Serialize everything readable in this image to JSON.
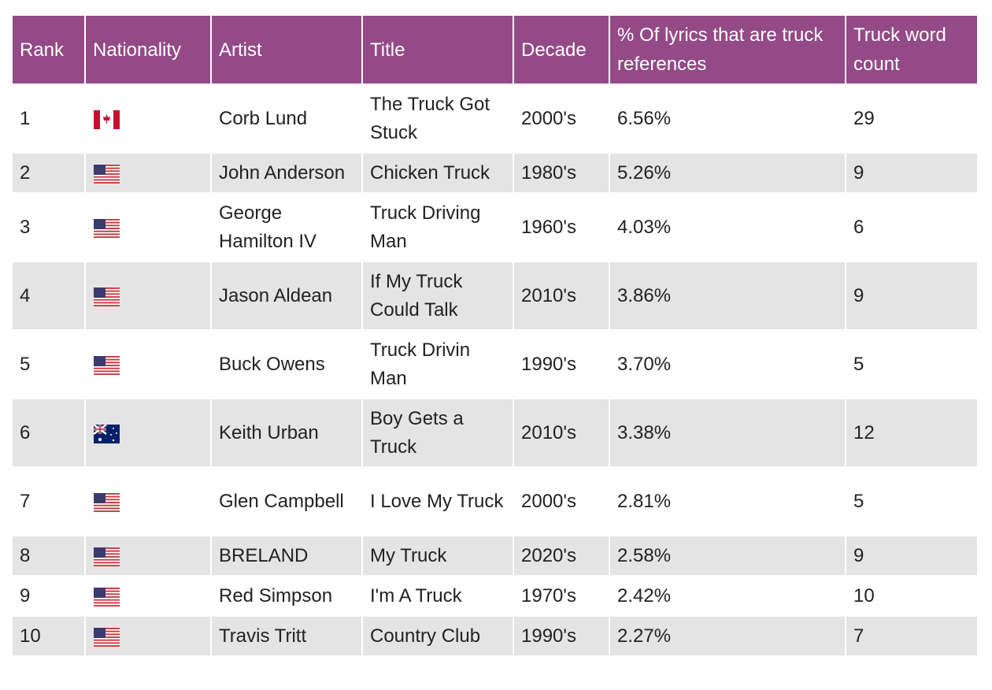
{
  "headers": [
    "Rank",
    "Nationality",
    "Artist",
    "Title",
    "Decade",
    "% Of lyrics that are truck references",
    "Truck word count"
  ],
  "rows": [
    {
      "rank": "1",
      "nationality": "canada-flag-icon",
      "artist": "Corb Lund",
      "title": "The Truck Got Stuck",
      "decade": "2000's",
      "pct": "6.56%",
      "count": "29"
    },
    {
      "rank": "2",
      "nationality": "usa-flag-icon",
      "artist": "John Anderson",
      "title": "Chicken Truck",
      "decade": "1980's",
      "pct": "5.26%",
      "count": "9"
    },
    {
      "rank": "3",
      "nationality": "usa-flag-icon",
      "artist": "George Hamilton IV",
      "title": "Truck Driving Man",
      "decade": "1960's",
      "pct": "4.03%",
      "count": "6"
    },
    {
      "rank": "4",
      "nationality": "usa-flag-icon",
      "artist": "Jason Aldean",
      "title": "If My Truck Could Talk",
      "decade": "2010's",
      "pct": "3.86%",
      "count": "9"
    },
    {
      "rank": "5",
      "nationality": "usa-flag-icon",
      "artist": "Buck Owens",
      "title": "Truck Drivin Man",
      "decade": "1990's",
      "pct": "3.70%",
      "count": "5"
    },
    {
      "rank": "6",
      "nationality": "australia-flag-icon",
      "artist": "Keith Urban",
      "title": "Boy Gets a Truck",
      "decade": "2010's",
      "pct": "3.38%",
      "count": "12"
    },
    {
      "rank": "7",
      "nationality": "usa-flag-icon",
      "artist": "Glen Campbell",
      "title": "I Love My Truck",
      "decade": "2000's",
      "pct": "2.81%",
      "count": "5"
    },
    {
      "rank": "8",
      "nationality": "usa-flag-icon",
      "artist": "BRELAND",
      "title": "My Truck",
      "decade": "2020's",
      "pct": "2.58%",
      "count": "9"
    },
    {
      "rank": "9",
      "nationality": "usa-flag-icon",
      "artist": "Red Simpson",
      "title": "I'm A Truck",
      "decade": "1970's",
      "pct": "2.42%",
      "count": "10"
    },
    {
      "rank": "10",
      "nationality": "usa-flag-icon",
      "artist": "Travis Tritt",
      "title": "Country Club",
      "decade": "1990's",
      "pct": "2.27%",
      "count": "7"
    }
  ],
  "colors": {
    "header": "#934a86",
    "stripe": "#e4e4e4"
  }
}
